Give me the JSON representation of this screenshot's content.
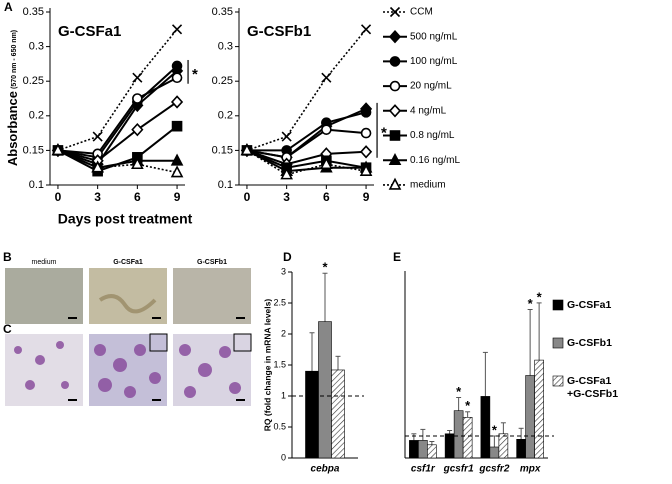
{
  "panel_labels": [
    "A",
    "B",
    "C",
    "D",
    "E"
  ],
  "image_columns": [
    "medium",
    "G-CSFa1",
    "G-CSFb1"
  ],
  "chart_data": [
    {
      "type": "line",
      "panels": [
        {
          "title": "G-CSFa1"
        },
        {
          "title": "G-CSFb1"
        }
      ],
      "x": [
        0,
        3,
        6,
        9
      ],
      "xlim": [
        -0.6,
        9.6
      ],
      "xticks": [
        0,
        3,
        6,
        9
      ],
      "ylim": [
        0.1,
        0.35
      ],
      "yticks": [
        0.1,
        0.15,
        0.2,
        0.25,
        0.3,
        0.35
      ],
      "xlabel": "Days post treatment",
      "ylabel": "Absorbance",
      "ylabel_sub": "(570 nm - 650 nm)",
      "series": [
        {
          "name": "CCM",
          "marker": "x",
          "filled": false,
          "dashed": true,
          "color": "#000000",
          "values": [
            [
              0.15,
              0.17,
              0.255,
              0.325
            ],
            [
              0.15,
              0.17,
              0.255,
              0.325
            ]
          ]
        },
        {
          "name": "500 ng/mL",
          "marker": "diamond",
          "filled": true,
          "dashed": false,
          "color": "#000000",
          "values": [
            [
              0.15,
              0.13,
              0.215,
              0.265
            ],
            [
              0.15,
              0.14,
              0.185,
              0.21
            ]
          ]
        },
        {
          "name": "100 ng/mL",
          "marker": "circle",
          "filled": true,
          "dashed": false,
          "color": "#000000",
          "values": [
            [
              0.15,
              0.14,
              0.22,
              0.272
            ],
            [
              0.15,
              0.15,
              0.19,
              0.205
            ]
          ]
        },
        {
          "name": "20 ng/mL",
          "marker": "circle",
          "filled": false,
          "dashed": false,
          "color": "#000000",
          "values": [
            [
              0.15,
              0.145,
              0.225,
              0.255
            ],
            [
              0.15,
              0.14,
              0.18,
              0.175
            ]
          ]
        },
        {
          "name": "4 ng/mL",
          "marker": "diamond",
          "filled": false,
          "dashed": false,
          "color": "#000000",
          "values": [
            [
              0.15,
              0.135,
              0.18,
              0.22
            ],
            [
              0.15,
              0.13,
              0.145,
              0.148
            ]
          ]
        },
        {
          "name": "0.8 ng/mL",
          "marker": "square",
          "filled": true,
          "dashed": false,
          "color": "#000000",
          "values": [
            [
              0.15,
              0.12,
              0.14,
              0.185
            ],
            [
              0.15,
              0.125,
              0.135,
              0.125
            ]
          ]
        },
        {
          "name": "0.16 ng/mL",
          "marker": "triangle",
          "filled": true,
          "dashed": false,
          "color": "#000000",
          "values": [
            [
              0.15,
              0.125,
              0.135,
              0.135
            ],
            [
              0.15,
              0.12,
              0.125,
              0.125
            ]
          ]
        },
        {
          "name": "medium",
          "marker": "triangle",
          "filled": false,
          "dashed": true,
          "color": "#000000",
          "values": [
            [
              0.15,
              0.125,
              0.13,
              0.118
            ],
            [
              0.15,
              0.115,
              0.13,
              0.12
            ]
          ]
        }
      ],
      "annotations": [
        {
          "text": "*",
          "panel": 0,
          "series": [
            1,
            2,
            3
          ]
        },
        {
          "text": "*",
          "panel": 1,
          "series": [
            1,
            2,
            3,
            4
          ]
        }
      ]
    },
    {
      "type": "bar",
      "categories": [
        "cebpa"
      ],
      "ylim": [
        0,
        3
      ],
      "yticks": [
        0,
        0.5,
        1,
        1.5,
        2,
        2.5,
        3
      ],
      "ylabel": "RQ (fold change in mRNA levels)",
      "hline": 1,
      "series": [
        {
          "color": "#000000",
          "hatch": false,
          "values": [
            1.4
          ],
          "errors": [
            0.62
          ]
        },
        {
          "color": "#888888",
          "hatch": false,
          "values": [
            2.2
          ],
          "errors": [
            0.78
          ]
        },
        {
          "color": "#ffffff",
          "hatch": true,
          "values": [
            1.42
          ],
          "errors": [
            0.22
          ]
        }
      ],
      "annotations": [
        {
          "text": "*",
          "series": 1,
          "index": 0
        }
      ]
    },
    {
      "type": "bar",
      "categories": [
        "csf1r",
        "gcsfr1",
        "gcsfr2",
        "mpx"
      ],
      "ylim": [
        0,
        8.5
      ],
      "hline": 1,
      "series": [
        {
          "name": "G-CSFa1",
          "color": "#000000",
          "hatch": false,
          "values": [
            0.8,
            1.1,
            2.8,
            0.85
          ],
          "errors": [
            0.3,
            0.15,
            2.0,
            0.5
          ]
        },
        {
          "name": "G-CSFb1",
          "color": "#888888",
          "hatch": false,
          "values": [
            0.8,
            2.15,
            0.5,
            3.75
          ],
          "errors": [
            0.5,
            0.6,
            0.5,
            3.0
          ]
        },
        {
          "name": "G-CSFa1 +G-CSFb1",
          "color": "#ffffff",
          "hatch": true,
          "values": [
            0.6,
            1.85,
            1.1,
            4.45
          ],
          "errors": [
            0.15,
            0.25,
            0.5,
            2.6
          ]
        }
      ],
      "annotations": [
        {
          "text": "*",
          "series": 1,
          "index": 1
        },
        {
          "text": "*",
          "series": 2,
          "index": 1
        },
        {
          "text": "*",
          "series": 1,
          "index": 2
        },
        {
          "text": "*",
          "series": 1,
          "index": 3
        },
        {
          "text": "*",
          "series": 2,
          "index": 3
        }
      ]
    }
  ]
}
